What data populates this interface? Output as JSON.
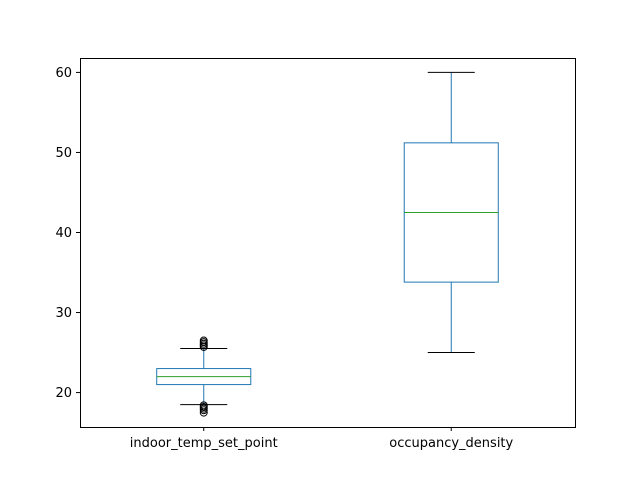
{
  "chart_data": {
    "type": "box",
    "title": "",
    "xlabel": "",
    "ylabel": "",
    "ylim": [
      15.7,
      61.8
    ],
    "yticks": [
      20,
      30,
      40,
      50,
      60
    ],
    "categories": [
      "indoor_temp_set_point",
      "occupancy_density"
    ],
    "boxes": [
      {
        "name": "indoor_temp_set_point",
        "whisker_low": 18.5,
        "q1": 21.0,
        "median": 22.0,
        "q3": 23.0,
        "whisker_high": 25.5,
        "outliers_low": [
          17.5,
          17.8,
          18.0,
          18.2,
          18.4
        ],
        "outliers_high": [
          25.7,
          25.9,
          26.1,
          26.3,
          26.5
        ]
      },
      {
        "name": "occupancy_density",
        "whisker_low": 25.0,
        "q1": 33.8,
        "median": 42.5,
        "q3": 51.2,
        "whisker_high": 60.0,
        "outliers_low": [],
        "outliers_high": []
      }
    ],
    "grid": false,
    "colors": {
      "box": "#1f77b4",
      "median": "#2ca02c",
      "outlier": "#000000",
      "axes": "#000000"
    }
  }
}
